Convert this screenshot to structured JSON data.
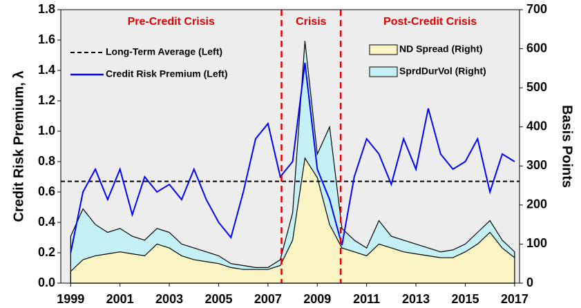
{
  "chart_data": {
    "type": "line",
    "y_label": "Credit Risk Premium, λ",
    "y2_label": "Basis Points",
    "x": [
      1999.0,
      1999.5,
      2000.0,
      2000.5,
      2001.0,
      2001.5,
      2002.0,
      2002.5,
      2003.0,
      2003.5,
      2004.0,
      2004.5,
      2005.0,
      2005.5,
      2006.0,
      2006.5,
      2007.0,
      2007.5,
      2008.0,
      2008.5,
      2009.0,
      2009.5,
      2010.0,
      2010.5,
      2011.0,
      2011.5,
      2012.0,
      2012.5,
      2013.0,
      2013.5,
      2014.0,
      2014.5,
      2015.0,
      2015.5,
      2016.0,
      2016.5,
      2017.0
    ],
    "xlim": [
      1998.6,
      2017.2
    ],
    "xticks": [
      1999,
      2001,
      2003,
      2005,
      2007,
      2009,
      2011,
      2013,
      2015,
      2017
    ],
    "ylim": [
      0,
      1.8
    ],
    "yticks": [
      {
        "value": 0,
        "label": "0.0"
      },
      0.2,
      0.4,
      0.6,
      0.8,
      {
        "value": 1,
        "label": "1.0"
      },
      1.2,
      1.4,
      1.6,
      1.8
    ],
    "y2lim": [
      0,
      700
    ],
    "y2ticks": [
      0,
      100,
      200,
      300,
      400,
      500,
      600,
      700
    ],
    "background": "#ededed",
    "series": [
      {
        "name": "SprdDurVol (Right)",
        "type": "area",
        "axis": "y2",
        "color": "#c4f0f6",
        "values": [
          120,
          190,
          150,
          130,
          140,
          120,
          110,
          140,
          130,
          100,
          90,
          80,
          70,
          50,
          45,
          40,
          40,
          60,
          180,
          620,
          330,
          400,
          140,
          110,
          90,
          160,
          120,
          110,
          100,
          90,
          80,
          85,
          100,
          130,
          160,
          110,
          80
        ]
      },
      {
        "name": "ND Spread (Right)",
        "type": "area",
        "axis": "y2",
        "color": "#fbf5c6",
        "values": [
          30,
          60,
          70,
          75,
          80,
          75,
          70,
          100,
          90,
          70,
          60,
          55,
          50,
          40,
          35,
          35,
          35,
          45,
          110,
          320,
          270,
          150,
          90,
          80,
          70,
          100,
          90,
          80,
          75,
          70,
          65,
          65,
          80,
          100,
          130,
          90,
          65
        ]
      },
      {
        "name": "Credit Risk Premium (Left)",
        "type": "line",
        "axis": "y",
        "color": "#0000ff",
        "values": [
          0.2,
          0.6,
          0.75,
          0.55,
          0.75,
          0.45,
          0.7,
          0.6,
          0.65,
          0.55,
          0.75,
          0.55,
          0.4,
          0.3,
          0.6,
          0.95,
          1.05,
          0.7,
          0.8,
          1.45,
          0.75,
          0.55,
          0.25,
          0.7,
          0.95,
          0.85,
          0.65,
          0.95,
          0.75,
          1.15,
          0.85,
          0.75,
          0.8,
          0.95,
          0.6,
          0.85,
          0.8
        ]
      }
    ],
    "reference_lines": [
      {
        "name": "Long-Term Average (Left)",
        "value": 0.67,
        "color": "#000000"
      }
    ],
    "dividers": {
      "values": [
        2007.55,
        2009.95
      ],
      "color": "#e00000"
    },
    "regions": [
      "Pre-Credit Crisis",
      "Crisis",
      "Post-Credit Crisis"
    ]
  }
}
